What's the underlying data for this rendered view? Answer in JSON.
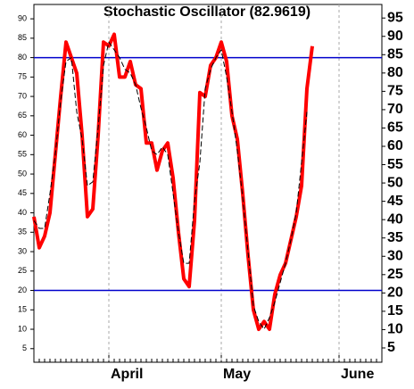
{
  "chart_data": {
    "type": "line",
    "title": "Stochastic Oscillator (82.9619)",
    "categories": [
      null,
      null,
      null,
      null,
      null,
      null,
      null,
      null,
      null,
      null,
      null,
      null,
      null,
      null,
      "April",
      null,
      null,
      null,
      null,
      null,
      null,
      null,
      null,
      null,
      null,
      null,
      null,
      null,
      null,
      null,
      null,
      null,
      null,
      null,
      null,
      "May",
      null,
      null,
      null,
      null,
      null,
      null,
      null,
      null,
      null,
      null,
      null,
      null,
      null,
      null,
      null,
      null,
      null,
      null,
      null,
      null,
      null,
      "June",
      null,
      null,
      null,
      null,
      null,
      null,
      null,
      null
    ],
    "series": [
      {
        "color": "#ff0000",
        "dashed": false,
        "width": 4,
        "values": [
          39,
          31,
          34,
          40,
          55,
          70,
          84,
          80,
          76,
          60,
          39,
          41,
          60,
          84,
          83,
          86,
          75,
          75,
          79,
          73,
          72,
          58,
          58,
          51,
          56,
          58,
          49,
          35,
          23,
          21,
          38,
          71,
          70,
          78,
          80,
          84,
          79,
          65,
          59,
          45,
          29,
          15,
          10,
          12,
          10,
          19,
          24,
          27,
          33,
          39,
          47,
          72,
          82.9619,
          null,
          null,
          null,
          null,
          null,
          null,
          null,
          null,
          null,
          null,
          null,
          null,
          null
        ]
      },
      {
        "color": "#000000",
        "dashed": true,
        "width": 1,
        "values": [
          38,
          36,
          36,
          45,
          55,
          69,
          79,
          80,
          66,
          59,
          47,
          48,
          62,
          78,
          84,
          82,
          80,
          77,
          76,
          73,
          67,
          62,
          56,
          55,
          57,
          55,
          45,
          35,
          27,
          27,
          43,
          53,
          72,
          77,
          80,
          82,
          75,
          66,
          56,
          44,
          30,
          16,
          12,
          10,
          13,
          17,
          22,
          27,
          33,
          40,
          53,
          66,
          null,
          null,
          null,
          null,
          null,
          null,
          null,
          null,
          null,
          null,
          null,
          null,
          null,
          null
        ]
      }
    ],
    "ylim": [
      1.5,
      93.7
    ],
    "yticks": [
      5,
      10,
      15,
      20,
      25,
      30,
      35,
      40,
      45,
      50,
      55,
      60,
      65,
      70,
      75,
      80,
      85,
      90
    ],
    "y2lim": [
      1.1,
      98.7
    ],
    "y2ticks": [
      5,
      10,
      15,
      20,
      25,
      30,
      35,
      40,
      45,
      50,
      55,
      60,
      65,
      70,
      75,
      80,
      85,
      90,
      95
    ],
    "hlines": [
      80,
      20
    ],
    "hline_color": "#0000cc"
  }
}
